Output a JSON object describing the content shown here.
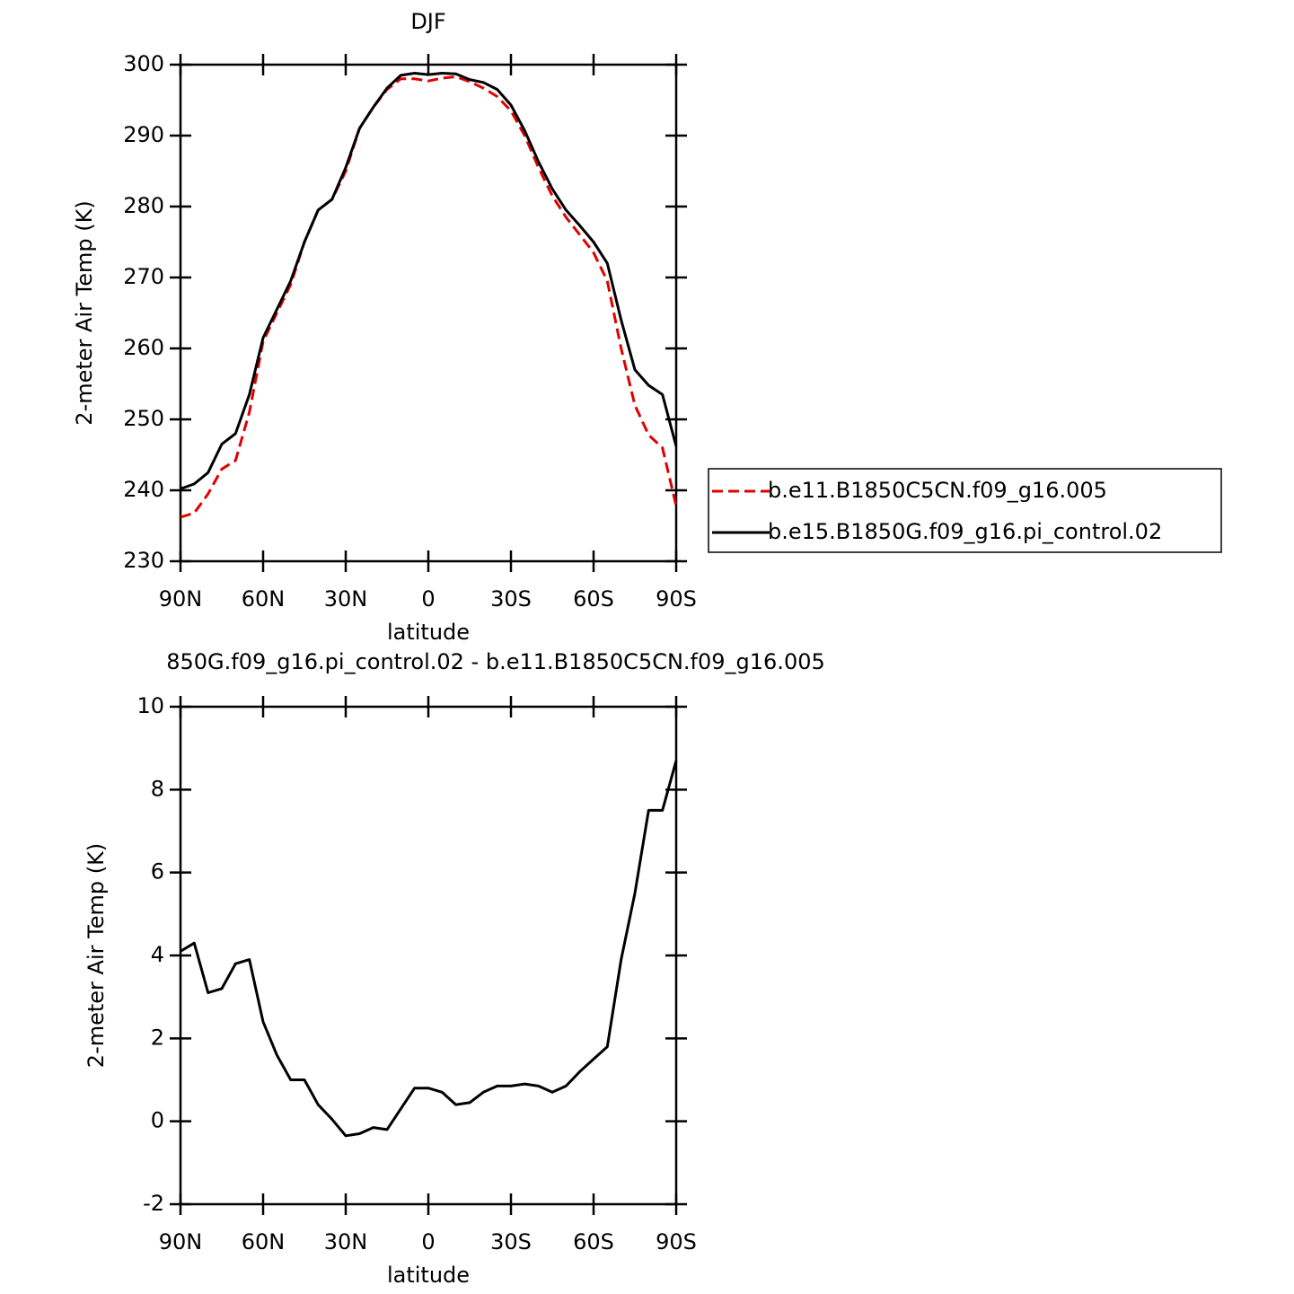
{
  "chart_data": [
    {
      "type": "line",
      "title": "DJF",
      "xlabel": "latitude",
      "ylabel": "2-meter Air Temp (K)",
      "x": [
        90,
        85,
        80,
        75,
        70,
        65,
        60,
        55,
        50,
        45,
        40,
        35,
        30,
        25,
        20,
        15,
        10,
        5,
        0,
        -5,
        -10,
        -15,
        -20,
        -25,
        -30,
        -35,
        -40,
        -45,
        -50,
        -55,
        -60,
        -65,
        -70,
        -75,
        -80,
        -85,
        -90
      ],
      "series": [
        {
          "name": "b.e11.B1850C5CN.f09_g16.005",
          "color": "#e00000",
          "line_style": "dashed",
          "values": [
            236.2,
            236.8,
            239.5,
            243,
            244.2,
            251,
            261,
            265,
            269,
            275,
            279.5,
            281,
            285,
            291,
            294,
            296.5,
            298,
            298,
            297.7,
            298.1,
            298.3,
            297.6,
            296.7,
            295.5,
            293.5,
            290,
            285.5,
            281.5,
            278.5,
            276,
            273.5,
            269.5,
            260,
            252,
            247.8,
            246,
            237.8
          ]
        },
        {
          "name": "b.e15.B1850G.f09_g16.pi_control.02",
          "color": "#000000",
          "line_style": "solid",
          "values": [
            240.2,
            240.9,
            242.5,
            246.5,
            248,
            253.5,
            261.5,
            265.5,
            269.5,
            275,
            279.5,
            281,
            285.5,
            291,
            294,
            296.7,
            298.5,
            298.8,
            298.6,
            298.8,
            298.7,
            297.9,
            297.5,
            296.5,
            294.3,
            290.7,
            286.3,
            282.5,
            279.5,
            277.3,
            275,
            272,
            264,
            257,
            254.8,
            253.5,
            246.2
          ]
        }
      ],
      "xlim": [
        90,
        -90
      ],
      "xticks": [
        {
          "value": 90,
          "label": "90N"
        },
        {
          "value": 60,
          "label": "60N"
        },
        {
          "value": 30,
          "label": "30N"
        },
        0,
        {
          "value": -30,
          "label": "30S"
        },
        {
          "value": -60,
          "label": "60S"
        },
        {
          "value": -90,
          "label": "90S"
        }
      ],
      "ylim": [
        230,
        300
      ],
      "yticks": [
        230,
        240,
        250,
        260,
        270,
        280,
        290,
        300
      ],
      "legend": "right"
    },
    {
      "type": "line",
      "title": "850G.f09_g16.pi_control.02 - b.e11.B1850C5CN.f09_g16.005",
      "xlabel": "latitude",
      "ylabel": "2-meter Air Temp (K)",
      "x": [
        90,
        85,
        80,
        75,
        70,
        65,
        60,
        55,
        50,
        45,
        40,
        35,
        30,
        25,
        20,
        15,
        10,
        5,
        0,
        -5,
        -10,
        -15,
        -20,
        -25,
        -30,
        -35,
        -40,
        -45,
        -50,
        -55,
        -60,
        -65,
        -70,
        -75,
        -80,
        -85,
        -90
      ],
      "values": [
        4.1,
        4.3,
        3.1,
        3.2,
        3.8,
        3.9,
        2.4,
        1.6,
        1.0,
        1.0,
        0.4,
        0.05,
        -0.35,
        -0.3,
        -0.15,
        -0.2,
        0.3,
        0.8,
        0.8,
        0.7,
        0.4,
        0.45,
        0.7,
        0.85,
        0.85,
        0.9,
        0.85,
        0.7,
        0.85,
        1.2,
        1.5,
        1.8,
        3.9,
        5.5,
        7.5,
        7.5,
        8.7
      ],
      "color": "#000000",
      "xlim": [
        90,
        -90
      ],
      "xticks": [
        {
          "value": 90,
          "label": "90N"
        },
        {
          "value": 60,
          "label": "60N"
        },
        {
          "value": 30,
          "label": "30N"
        },
        0,
        {
          "value": -30,
          "label": "30S"
        },
        {
          "value": -60,
          "label": "60S"
        },
        {
          "value": -90,
          "label": "90S"
        }
      ],
      "ylim": [
        -2,
        10
      ],
      "yticks": [
        -2,
        0,
        2,
        4,
        6,
        8,
        10
      ]
    }
  ]
}
